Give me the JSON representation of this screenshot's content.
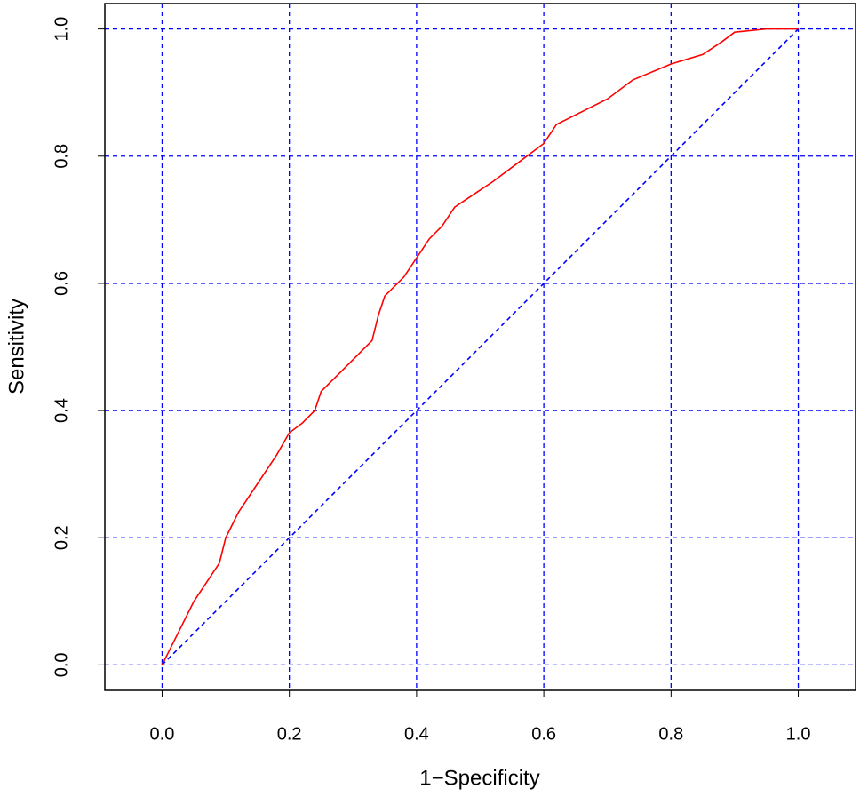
{
  "chart_data": {
    "type": "line",
    "x_label": "1−Specificity",
    "y_label": "Sensitivity",
    "xlim": [
      -0.09,
      1.09
    ],
    "ylim": [
      -0.04,
      1.04
    ],
    "xticks": [
      {
        "value": 0,
        "label": "0.0"
      },
      0.2,
      0.4,
      0.6,
      0.8,
      {
        "value": 1,
        "label": "1.0"
      }
    ],
    "yticks": [
      {
        "value": 0,
        "label": "0.0"
      },
      0.2,
      0.4,
      0.6,
      0.8,
      {
        "value": 1,
        "label": "1.0"
      }
    ],
    "grid": true,
    "grid_color": "#0000ff",
    "x": [
      0,
      0.01,
      0.03,
      0.05,
      0.07,
      0.09,
      0.1,
      0.12,
      0.14,
      0.16,
      0.18,
      0.2,
      0.22,
      0.24,
      0.25,
      0.28,
      0.31,
      0.33,
      0.34,
      0.35,
      0.38,
      0.4,
      0.42,
      0.44,
      0.46,
      0.49,
      0.52,
      0.56,
      0.6,
      0.62,
      0.66,
      0.7,
      0.74,
      0.8,
      0.85,
      0.88,
      0.9,
      0.95,
      1
    ],
    "series": [
      {
        "color": "#ff0000",
        "values": [
          0,
          0.02,
          0.06,
          0.1,
          0.13,
          0.16,
          0.2,
          0.24,
          0.27,
          0.3,
          0.33,
          0.365,
          0.38,
          0.4,
          0.43,
          0.46,
          0.49,
          0.51,
          0.55,
          0.58,
          0.61,
          0.64,
          0.67,
          0.69,
          0.72,
          0.74,
          0.76,
          0.79,
          0.82,
          0.85,
          0.87,
          0.89,
          0.92,
          0.945,
          0.96,
          0.98,
          0.995,
          1,
          1
        ]
      }
    ],
    "reference_line": {
      "x": [
        0,
        1
      ],
      "values": [
        0,
        1
      ],
      "color": "#0000ff"
    }
  }
}
